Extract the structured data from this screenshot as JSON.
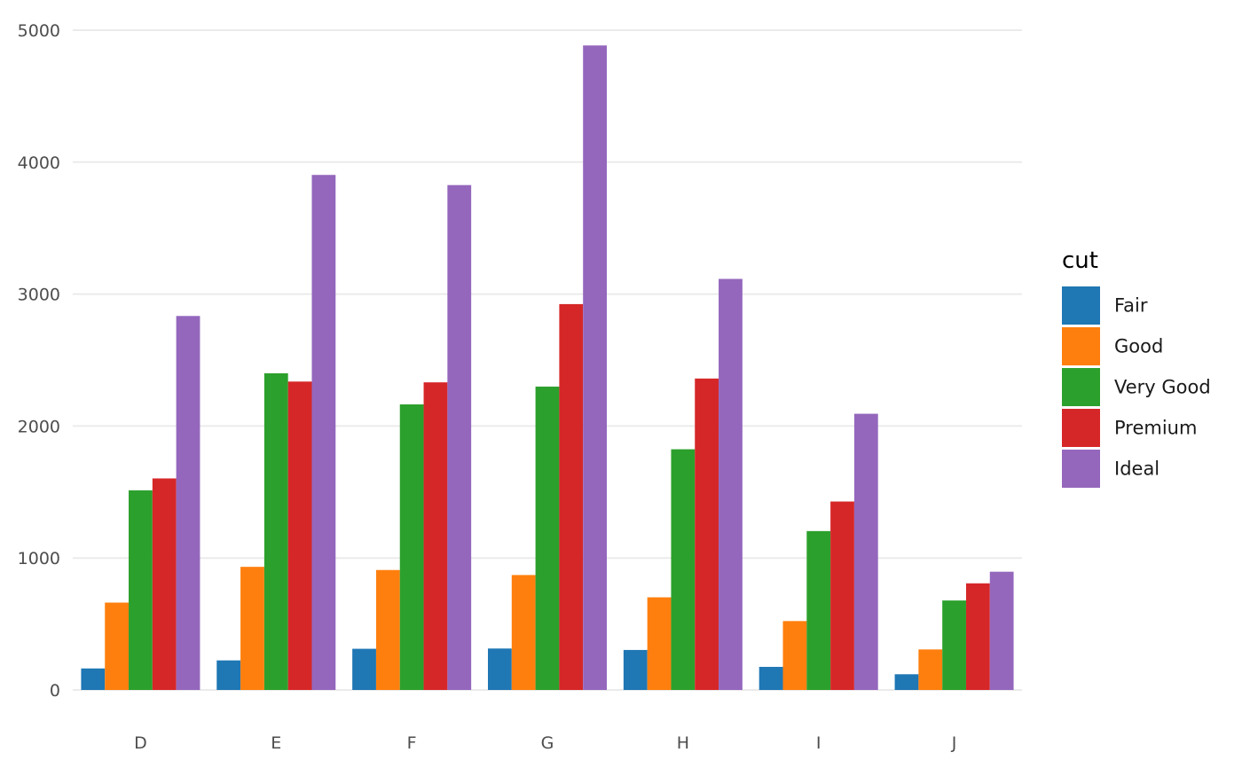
{
  "chart_data": {
    "type": "bar",
    "categories": [
      "D",
      "E",
      "F",
      "G",
      "H",
      "I",
      "J"
    ],
    "series": [
      {
        "name": "Fair",
        "color": "#1f77b4",
        "values": [
          163,
          224,
          312,
          314,
          303,
          175,
          119
        ]
      },
      {
        "name": "Good",
        "color": "#ff7f0e",
        "values": [
          662,
          933,
          909,
          871,
          702,
          522,
          307
        ]
      },
      {
        "name": "Very Good",
        "color": "#2ca02c",
        "values": [
          1513,
          2400,
          2164,
          2299,
          1824,
          1204,
          678
        ]
      },
      {
        "name": "Premium",
        "color": "#d62728",
        "values": [
          1603,
          2337,
          2331,
          2924,
          2360,
          1428,
          808
        ]
      },
      {
        "name": "Ideal",
        "color": "#9467bd",
        "values": [
          2834,
          3903,
          3826,
          4884,
          3115,
          2093,
          896
        ]
      }
    ],
    "y_ticks": [
      "0",
      "1000",
      "2000",
      "3000",
      "4000",
      "5000"
    ],
    "ylim": [
      0,
      5000
    ],
    "grid": "horizontal",
    "legend": {
      "title": "cut",
      "position": "right"
    }
  }
}
